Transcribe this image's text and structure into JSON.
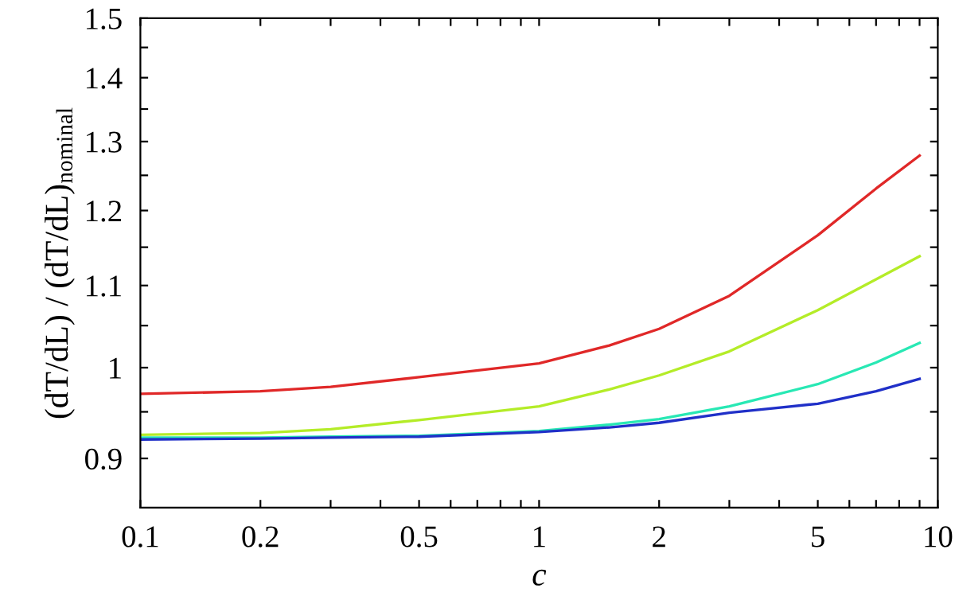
{
  "chart_data": {
    "type": "line",
    "xlabel": "c",
    "ylabel": "(dT/dL) / (dT/dL)$_{nominal}$",
    "log": "xy",
    "grid": false,
    "marker": "none",
    "line_style": "solid",
    "x": [
      0.1,
      0.2,
      0.3,
      0.5,
      1,
      1.5,
      2,
      3,
      5,
      7,
      9
    ],
    "series": [
      {
        "color": "#e02828",
        "values": [
          0.97,
          0.973,
          0.978,
          0.989,
          1.005,
          1.026,
          1.046,
          1.087,
          1.166,
          1.231,
          1.279
        ]
      },
      {
        "color": "#b4ec28",
        "values": [
          0.925,
          0.927,
          0.931,
          0.941,
          0.956,
          0.975,
          0.991,
          1.019,
          1.069,
          1.108,
          1.138
        ]
      },
      {
        "color": "#28e8b4",
        "values": [
          0.922,
          0.922,
          0.923,
          0.924,
          0.929,
          0.936,
          0.942,
          0.956,
          0.981,
          1.006,
          1.029
        ]
      },
      {
        "color": "#2030c8",
        "values": [
          0.92,
          0.921,
          0.922,
          0.923,
          0.928,
          0.933,
          0.938,
          0.949,
          0.959,
          0.973,
          0.987
        ]
      }
    ],
    "xlim": [
      0.1,
      10
    ],
    "xticks": [
      0.1,
      0.2,
      {
        "value": 0.3,
        "label": null
      },
      {
        "value": 0.4,
        "label": null
      },
      0.5,
      {
        "value": 0.6,
        "label": null
      },
      {
        "value": 0.7,
        "label": null
      },
      {
        "value": 0.8,
        "label": null
      },
      {
        "value": 0.9,
        "label": null
      },
      1,
      2,
      {
        "value": 3,
        "label": null
      },
      {
        "value": 4,
        "label": null
      },
      5,
      {
        "value": 6,
        "label": null
      },
      {
        "value": 7,
        "label": null
      },
      {
        "value": 8,
        "label": null
      },
      {
        "value": 9,
        "label": null
      },
      10
    ],
    "ylim": [
      0.85,
      1.5
    ],
    "yticks": [
      0.9,
      {
        "value": 0.95,
        "label": null
      },
      1,
      {
        "value": 1.05,
        "label": null
      },
      1.1,
      {
        "value": 1.15,
        "label": null
      },
      1.2,
      {
        "value": 1.25,
        "label": null
      },
      1.3,
      {
        "value": 1.35,
        "label": null
      },
      1.4,
      {
        "value": 1.45,
        "label": null
      },
      1.5
    ]
  }
}
